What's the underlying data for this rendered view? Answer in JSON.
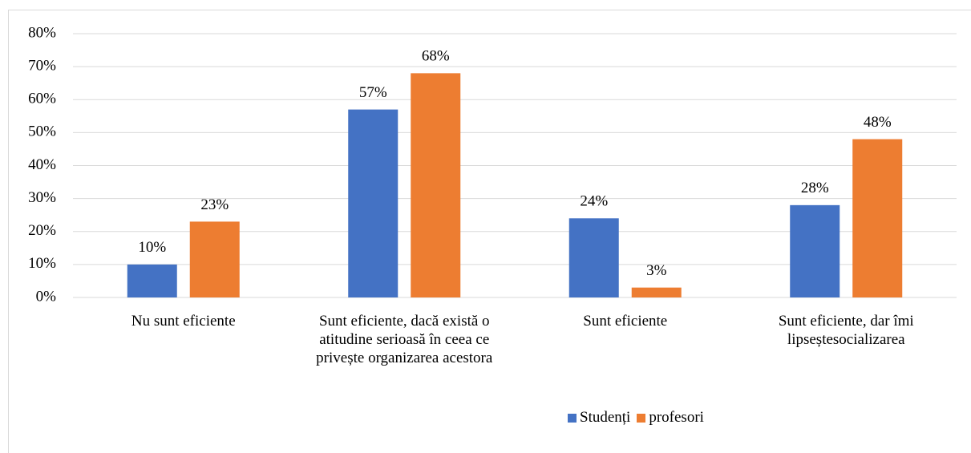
{
  "chart_data": {
    "type": "bar",
    "categories": [
      "Nu sunt eficiente",
      "Sunt eficiente, dacă există o atitudine serioasă în ceea ce privește organizarea acestora",
      "Sunt eficiente",
      "Sunt eficiente, dar îmi lipseștesocializarea"
    ],
    "series": [
      {
        "name": "Studenți",
        "color": "#4472c4",
        "values": [
          10,
          57,
          24,
          28
        ],
        "value_labels": [
          "10%",
          "57%",
          "24%",
          "28%"
        ]
      },
      {
        "name": "profesori",
        "color": "#ed7d31",
        "values": [
          23,
          68,
          3,
          48
        ],
        "value_labels": [
          "23%",
          "68%",
          "3%",
          "48%"
        ]
      }
    ],
    "ylim": [
      0,
      80
    ],
    "yticks": [
      {
        "value": 0,
        "label": "0%"
      },
      {
        "value": 10,
        "label": "10%"
      },
      {
        "value": 20,
        "label": "20%"
      },
      {
        "value": 30,
        "label": "30%"
      },
      {
        "value": 40,
        "label": "40%"
      },
      {
        "value": 50,
        "label": "50%"
      },
      {
        "value": 60,
        "label": "60%"
      },
      {
        "value": 70,
        "label": "70%"
      },
      {
        "value": 80,
        "label": "80%"
      }
    ],
    "grid": true,
    "legend": "bottom"
  }
}
